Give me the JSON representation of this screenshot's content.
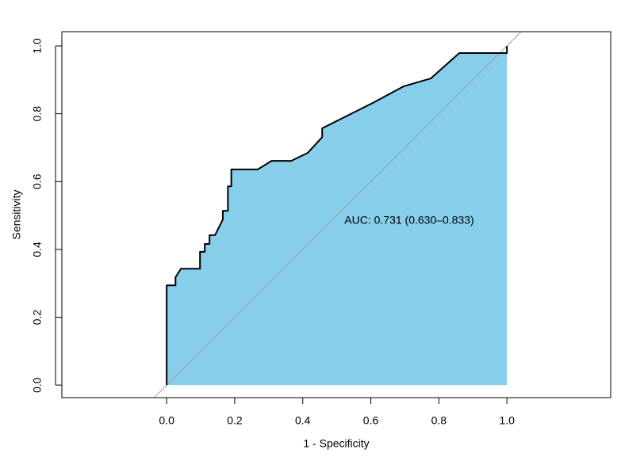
{
  "chart_data": {
    "type": "line",
    "xlabel": "1 - Specificity",
    "ylabel": "Sensitivity",
    "annotation": "AUC: 0.731 (0.630–0.833)",
    "x": [
      0,
      0,
      0.026,
      0.026,
      0.042,
      0.098,
      0.098,
      0.112,
      0.112,
      0.126,
      0.126,
      0.142,
      0.165,
      0.165,
      0.18,
      0.18,
      0.19,
      0.19,
      0.268,
      0.308,
      0.366,
      0.415,
      0.457,
      0.457,
      0.606,
      0.697,
      0.776,
      0.86,
      1,
      1
    ],
    "series": [
      {
        "color": "#000000",
        "fill": "#87ceeb",
        "values": [
          0,
          0.294,
          0.294,
          0.318,
          0.343,
          0.343,
          0.393,
          0.393,
          0.416,
          0.416,
          0.442,
          0.442,
          0.488,
          0.514,
          0.514,
          0.586,
          0.586,
          0.636,
          0.636,
          0.661,
          0.661,
          0.685,
          0.731,
          0.757,
          0.832,
          0.881,
          0.904,
          0.979,
          0.979,
          1
        ]
      }
    ],
    "xlim": [
      -0.308,
      1.305
    ],
    "ylim": [
      -0.037,
      1.042
    ],
    "xticks": [
      {
        "value": 0,
        "label": "0.0"
      },
      0.2,
      0.4,
      0.6,
      0.8,
      {
        "value": 1,
        "label": "1.0"
      }
    ],
    "yticks": [
      {
        "value": 0,
        "label": "0.0"
      },
      0.2,
      0.4,
      0.6,
      0.8,
      {
        "value": 1,
        "label": "1.0"
      }
    ],
    "diagonal": true,
    "grid": false
  }
}
